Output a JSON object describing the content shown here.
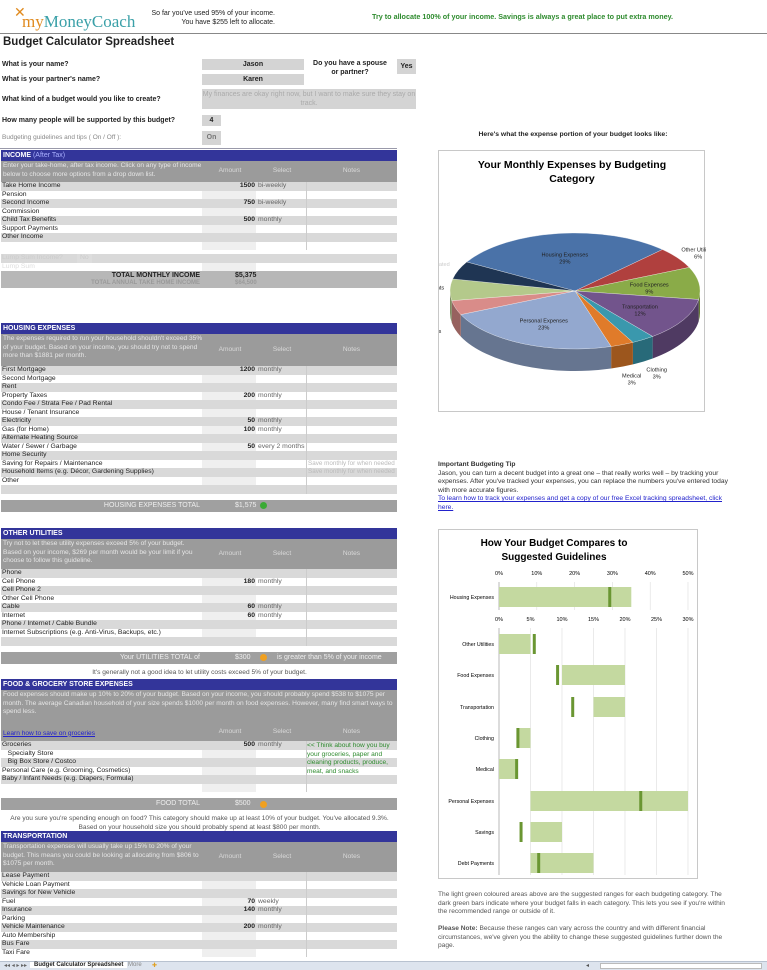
{
  "header": {
    "logo_text": "myMoneyCoach",
    "status_line1": "So far you've used 95% of your income.",
    "status_line2": "You have $255 left to allocate.",
    "advice": "Try to allocate 100% of your income. Savings is always a great place to put extra money."
  },
  "title": "Budget Calculator Spreadsheet",
  "questions": {
    "name_q": "What is your name?",
    "name_v": "Jason",
    "partner_q": "What is your partner's name?",
    "partner_v": "Karen",
    "spouse_q": "Do you have a spouse or partner?",
    "spouse_v": "Yes",
    "kind_q": "What kind of a budget would you like to create?",
    "kind_v": "My finances are okay right now, but I want to make sure they stay on track.",
    "people_q": "How many people will be supported by this budget?",
    "people_v": "4",
    "tips_q": "Budgeting guidelines and tips ( On / Off ):",
    "tips_v": "On"
  },
  "columns": {
    "amount": "Amount",
    "select": "Select",
    "notes": "Notes"
  },
  "sections": {
    "income": {
      "title": "INCOME",
      "suffix": "(After Tax)",
      "desc": "Enter your take-home, after tax income. Click on any type of income below to choose more options from a drop down list.",
      "rows": [
        {
          "label": "Take Home Income",
          "amount": "1500",
          "freq": "bi-weekly"
        },
        {
          "label": "Pension"
        },
        {
          "label": "Second Income",
          "amount": "750",
          "freq": "bi-weekly"
        },
        {
          "label": "Commission"
        },
        {
          "label": "Child Tax Benefits",
          "amount": "500",
          "freq": "monthly"
        },
        {
          "label": "Support Payments"
        },
        {
          "label": "Other Income"
        },
        {
          "label": ""
        }
      ],
      "lump_q": "Lump Sum Income?",
      "lump_v": "No",
      "lump_label": "Lump Sum",
      "total_label": "TOTAL MONTHLY INCOME",
      "total": "$5,375",
      "annual_label": "TOTAL ANNUAL TAKE HOME INCOME",
      "annual": "$64,500"
    },
    "housing": {
      "title": "HOUSING EXPENSES",
      "desc": "The expenses required to run your household shouldn't exceed 35% of your budget. Based on your income, you should try not to spend more than $1881 per month.",
      "rows": [
        {
          "label": "First Mortgage",
          "amount": "1200",
          "freq": "monthly"
        },
        {
          "label": "Second Mortgage"
        },
        {
          "label": "Rent"
        },
        {
          "label": "Property Taxes",
          "amount": "200",
          "freq": "monthly"
        },
        {
          "label": "Condo Fee / Strata Fee / Pad Rental"
        },
        {
          "label": "House / Tenant Insurance"
        },
        {
          "label": "Electricity",
          "amount": "50",
          "freq": "monthly"
        },
        {
          "label": "Gas (for Home)",
          "amount": "100",
          "freq": "monthly"
        },
        {
          "label": "Alternate Heating Source"
        },
        {
          "label": "Water / Sewer / Garbage",
          "amount": "50",
          "freq": "every 2 months"
        },
        {
          "label": "Home Security"
        },
        {
          "label": "Saving for Repairs / Maintenance",
          "note": "Save monthly for when needed"
        },
        {
          "label": "Household Items (e.g. Décor, Gardening Supplies)",
          "note": "Save monthly for when needed"
        },
        {
          "label": "Other"
        },
        {
          "label": ""
        }
      ],
      "total_label": "HOUSING EXPENSES TOTAL",
      "total": "$1,575",
      "status_icon": "check-circle-icon",
      "status_color": "#3aaa35"
    },
    "utilities": {
      "title": "OTHER UTILITIES",
      "desc": "Try not to let these utility expenses exceed 5% of your budget. Based on your income, $269 per month would be your limit if you choose to follow this guideline.",
      "rows": [
        {
          "label": "Phone"
        },
        {
          "label": "Cell Phone",
          "amount": "180",
          "freq": "monthly"
        },
        {
          "label": "Cell Phone 2"
        },
        {
          "label": "Other Cell Phone"
        },
        {
          "label": "Cable",
          "amount": "60",
          "freq": "monthly"
        },
        {
          "label": "Internet",
          "amount": "60",
          "freq": "monthly"
        },
        {
          "label": "Phone / Internet / Cable Bundle"
        },
        {
          "label": "Internet Subscriptions (e.g. Anti-Virus, Backups, etc.)"
        },
        {
          "label": ""
        }
      ],
      "total_label": "Your UTILITIES TOTAL of",
      "total": "$300",
      "status_icon": "warning-circle-icon",
      "status_color": "#f0a020",
      "total_suffix": "is greater than 5% of your income",
      "note": "It's generally not a good idea to let utility costs exceed 5% of your budget."
    },
    "food": {
      "title": "FOOD & GROCERY STORE EXPENSES",
      "desc": "Food expenses should make up 10% to 20% of your budget. Based on your income, you should probably spend $538 to $1075 per month. The average Canadian household of your size spends $1000 per month on food expenses. However, many find smart ways to spend less.",
      "link": "Learn how to save on groceries",
      "rows": [
        {
          "label": "Groceries",
          "amount": "500",
          "freq": "monthly"
        },
        {
          "label": "   Specialty Store"
        },
        {
          "label": "   Big Box Store / Costco"
        },
        {
          "label": "Personal Care (e.g. Grooming, Cosmetics)"
        },
        {
          "label": "Baby / Infant Needs (e.g. Diapers, Formula)"
        },
        {
          "label": ""
        }
      ],
      "tip": "<< Think about how you buy your groceries, paper and cleaning products, produce, meat, and snacks",
      "total_label": "FOOD TOTAL",
      "total": "$500",
      "status_icon": "warning-circle-icon",
      "status_color": "#f0a020",
      "note": "Are you sure you're spending enough on food? This category should make up at least 10% of your budget. You've allocated 9.3%. Based on your household size you should probably spend at least $800 per month."
    },
    "transport": {
      "title": "TRANSPORTATION",
      "desc": "Transportation expenses will usually take up 15% to 20% of your budget. This means you could be looking at allocating from $806 to $1075 per month.",
      "rows": [
        {
          "label": "Lease Payment"
        },
        {
          "label": "Vehicle Loan Payment"
        },
        {
          "label": "Savings for New Vehicle"
        },
        {
          "label": "Fuel",
          "amount": "70",
          "freq": "weekly"
        },
        {
          "label": "Insurance",
          "amount": "140",
          "freq": "monthly"
        },
        {
          "label": "Parking"
        },
        {
          "label": "Vehicle Maintenance",
          "amount": "200",
          "freq": "monthly"
        },
        {
          "label": "Auto Membership"
        },
        {
          "label": "Bus Fare"
        },
        {
          "label": "Taxi Fare"
        }
      ]
    }
  },
  "right": {
    "pie_intro": "Here's what the expense portion of your budget looks like:",
    "tip_title": "Important Budgeting Tip",
    "tip_text": "Jason, you can turn a decent budget into a great one – that really works well – by tracking your expenses. After you've tracked your expenses, you can replace the numbers you've entered today with more accurate figures.",
    "tip_link": "To learn how to track your expenses and get a copy of our free Excel tracking spreadsheet, click here.",
    "explain": "The light green coloured areas above are the suggested ranges for each budgeting category. The dark green bars indicate where your budget falls in each category. This lets you see if you're within the recommended range or outside of it.",
    "note_label": "Please Note:",
    "note_text": "Because these ranges can vary across the country and with different financial circumstances, we've given you the ability to change these suggested guidelines further down the page."
  },
  "chart_data": [
    {
      "type": "pie",
      "title": "Your Monthly Expenses by Budgeting Category",
      "style": "3d",
      "slices": [
        {
          "name": "Housing Expenses",
          "value": 29,
          "color": "#4a72a8"
        },
        {
          "name": "Other Utilities",
          "value": 6,
          "color": "#b0403e"
        },
        {
          "name": "Food Expenses",
          "value": 9,
          "color": "#8aab48"
        },
        {
          "name": "Transportation",
          "value": 12,
          "color": "#72548c"
        },
        {
          "name": "Clothing",
          "value": 3,
          "color": "#3a98ad"
        },
        {
          "name": "Medical",
          "value": 3,
          "color": "#e07b2a"
        },
        {
          "name": "Personal Expenses",
          "value": 23,
          "color": "#93a8cf"
        },
        {
          "name": "Savings",
          "value": 4,
          "color": "#d98c89"
        },
        {
          "name": "Debt Payments",
          "value": 6,
          "color": "#b4c98b"
        },
        {
          "name": "Unallocated",
          "value": 5,
          "color": "#1f3553"
        }
      ]
    },
    {
      "type": "bar",
      "title": "How Your Budget Compares to Suggested Guidelines",
      "range_color": "#c4d9a0",
      "actual_color": "#6a9632",
      "panels": [
        {
          "xlim": [
            0,
            50
          ],
          "ticks": [
            "0%",
            "10%",
            "20%",
            "30%",
            "40%",
            "50%"
          ],
          "categories": [
            {
              "name": "Housing Expenses",
              "range": [
                0,
                35
              ],
              "actual": 29.3
            }
          ]
        },
        {
          "xlim": [
            0,
            30
          ],
          "ticks": [
            "0%",
            "5%",
            "10%",
            "15%",
            "20%",
            "25%",
            "30%"
          ],
          "categories": [
            {
              "name": "Other Utilities",
              "range": [
                0,
                5
              ],
              "actual": 5.6
            },
            {
              "name": "Food Expenses",
              "range": [
                10,
                20
              ],
              "actual": 9.3
            },
            {
              "name": "Transportation",
              "range": [
                15,
                20
              ],
              "actual": 11.7
            },
            {
              "name": "Clothing",
              "range": [
                3,
                5
              ],
              "actual": 3.0
            },
            {
              "name": "Medical",
              "range": [
                0,
                3
              ],
              "actual": 2.8
            },
            {
              "name": "Personal Expenses",
              "range": [
                5,
                30
              ],
              "actual": 22.5
            },
            {
              "name": "Savings",
              "range": [
                5,
                10
              ],
              "actual": 3.5
            },
            {
              "name": "Debt Payments",
              "range": [
                5,
                15
              ],
              "actual": 6.3
            }
          ]
        }
      ]
    }
  ],
  "tabs": {
    "active": "Budget Calculator Spreadsheet",
    "other": "More"
  }
}
